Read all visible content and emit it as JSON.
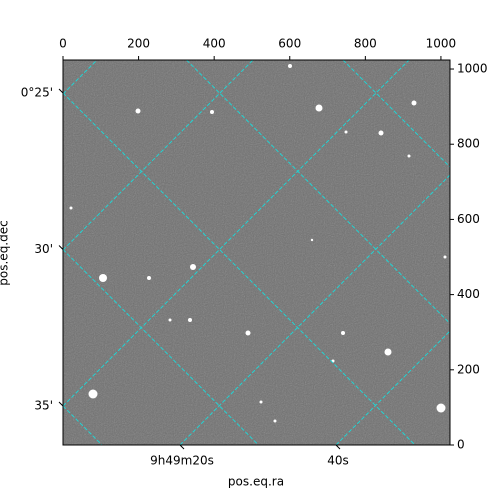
{
  "chart_data": {
    "type": "image",
    "xlabel": "pos.eq.ra",
    "ylabel": "pos.eq.dec",
    "xlim": [
      0,
      1024
    ],
    "ylim": [
      0,
      1024
    ],
    "xticks": [
      0,
      200,
      400,
      600,
      800,
      1000
    ],
    "yticks": [
      0,
      200,
      400,
      600,
      800,
      1000
    ],
    "ra_ticks": [
      {
        "value": -40,
        "label": null
      },
      {
        "value": -20,
        "label": null
      },
      {
        "value": 0,
        "label": null
      },
      {
        "value": 20,
        "label": "9h49m20s"
      },
      {
        "value": 40,
        "label": "40s"
      }
    ],
    "dec_ticks": [
      {
        "value": 15,
        "label": null
      },
      {
        "value": 20,
        "label": null
      },
      {
        "value": 25,
        "label": "0°25'"
      },
      {
        "value": 30,
        "label": "30'"
      },
      {
        "value": 35,
        "label": "35'"
      }
    ],
    "grid_color": "#22d3d3"
  }
}
